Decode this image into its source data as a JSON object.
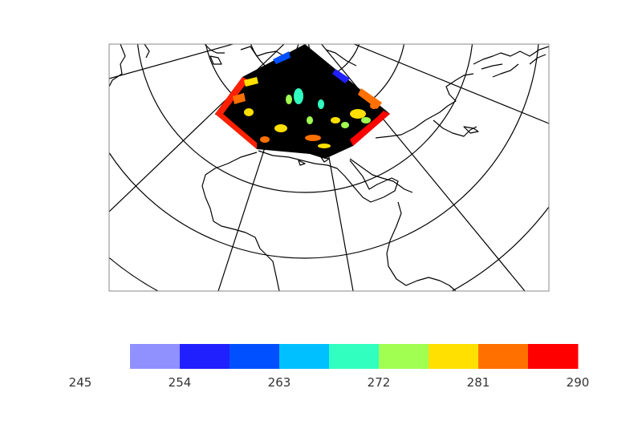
{
  "chart_data": {
    "type": "map",
    "projection": "lambert-conformal (north polar view)",
    "region": "Europe / North Africa / Middle East",
    "grid": true,
    "colorbar": {
      "orientation": "horizontal",
      "boundaries": [
        245,
        254,
        263,
        272,
        281,
        290
      ],
      "colors": [
        "#9090ff",
        "#2020ff",
        "#0050ff",
        "#00c0ff",
        "#30ffc0",
        "#a0ff50",
        "#ffe000",
        "#ff7000",
        "#ff0000"
      ],
      "tick_labels": [
        "245",
        "254",
        "263",
        "272",
        "281",
        "290"
      ]
    }
  }
}
